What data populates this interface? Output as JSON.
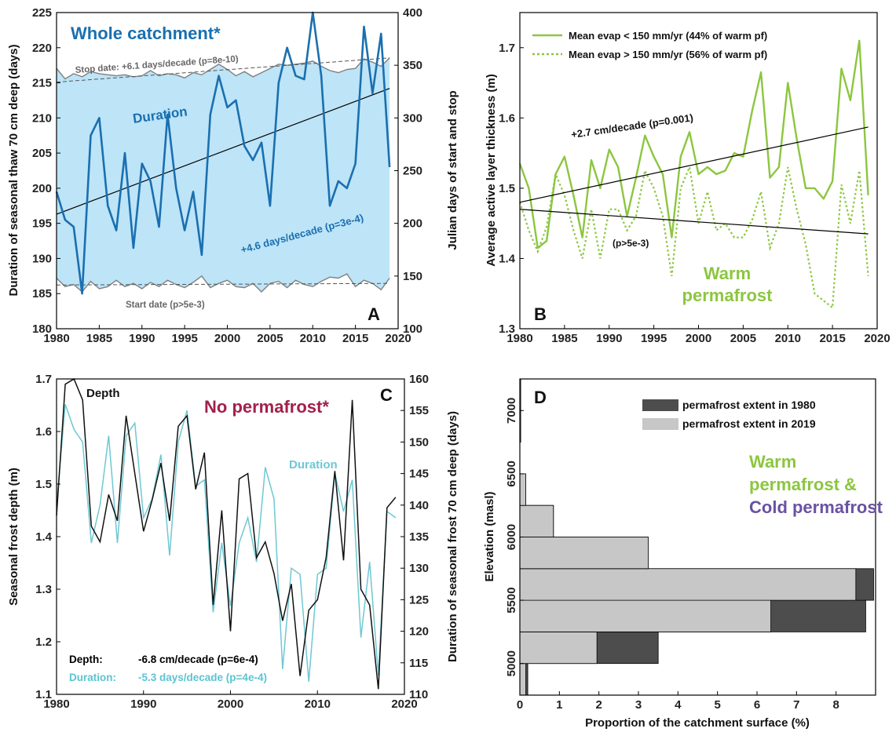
{
  "chart_data": [
    {
      "panel": "A",
      "type": "area",
      "title": "Whole catchment*",
      "xlabel": "",
      "ylabel": "Duration of seasonal thaw 70 cm deep (days)",
      "y2label": "Julian days of start and stop",
      "xlim": [
        1980,
        2020
      ],
      "ylim": [
        180,
        225
      ],
      "y2lim": [
        100,
        400
      ],
      "xticks": [
        "1980",
        "1985",
        "1990",
        "1995",
        "2000",
        "2005",
        "2010",
        "2015",
        "2020"
      ],
      "yticks": [
        "180",
        "185",
        "190",
        "195",
        "200",
        "205",
        "210",
        "215",
        "220",
        "225"
      ],
      "y2ticks": [
        "100",
        "150",
        "200",
        "250",
        "300",
        "350",
        "400"
      ],
      "band_label": "Duration",
      "years": [
        1980,
        1981,
        1982,
        1983,
        1984,
        1985,
        1986,
        1987,
        1988,
        1989,
        1990,
        1991,
        1992,
        1993,
        1994,
        1995,
        1996,
        1997,
        1998,
        1999,
        2000,
        2001,
        2002,
        2003,
        2004,
        2005,
        2006,
        2007,
        2008,
        2009,
        2010,
        2011,
        2012,
        2013,
        2014,
        2015,
        2016,
        2017,
        2018,
        2019
      ],
      "series": [
        {
          "name": "Duration",
          "axis": "left",
          "color": "#1a6fb0",
          "values": [
            199.5,
            195.5,
            194.5,
            185,
            207.5,
            210,
            197.5,
            194,
            205,
            191.5,
            203.5,
            201,
            194.5,
            210.5,
            200,
            194,
            199.5,
            190.5,
            210.5,
            216,
            211.5,
            212.5,
            206,
            204,
            206.5,
            197.5,
            215,
            220,
            216,
            215.5,
            225,
            216,
            197.5,
            201,
            200,
            203.5,
            223,
            213.5,
            222,
            203
          ]
        },
        {
          "name": "Stop date",
          "axis": "right",
          "color": "#808080",
          "values": [
            347,
            337,
            342,
            339,
            344,
            342,
            341,
            340,
            341,
            339,
            340,
            345,
            340,
            342,
            341,
            338,
            343,
            341,
            346,
            351,
            346,
            340,
            344,
            339,
            343,
            347,
            351,
            350,
            351,
            352,
            354,
            349,
            345,
            343,
            346,
            347,
            356,
            353,
            349,
            357
          ]
        },
        {
          "name": "Start date",
          "axis": "right",
          "color": "#808080",
          "values": [
            148,
            140,
            142,
            135,
            145,
            138,
            140,
            146,
            140,
            143,
            138,
            144,
            140,
            146,
            142,
            139,
            144,
            150,
            139,
            143,
            146,
            140,
            139,
            143,
            135,
            143,
            145,
            139,
            146,
            142,
            140,
            145,
            149,
            148,
            152,
            140,
            146,
            143,
            137,
            148
          ]
        }
      ],
      "trends": [
        {
          "label": "+4.6 days/decade (p=3e-4)",
          "color": "#1a6fb0",
          "line_color": "#000000",
          "x": [
            1980,
            2019
          ],
          "y": [
            196.3,
            214.2
          ],
          "axis": "left"
        },
        {
          "label": "Stop date: +6.1 days/decade (p=8e-10)",
          "color": "#666666",
          "x": [
            1980,
            2019
          ],
          "y": [
            334,
            357
          ],
          "axis": "right",
          "dashed": true
        },
        {
          "label": "Start date (p>5e-3)",
          "color": "#666666",
          "x": [
            1980,
            2019
          ],
          "y": [
            141.5,
            143
          ],
          "axis": "right",
          "dashed": true
        }
      ],
      "colors": {
        "band": "#bde4f7",
        "duration": "#1a6fb0",
        "bounds": "#808080"
      }
    },
    {
      "panel": "B",
      "type": "line",
      "title": "",
      "xlabel": "",
      "ylabel": "Average active layer thickness (m)",
      "xlim": [
        1980,
        2020
      ],
      "ylim": [
        1.3,
        1.75
      ],
      "xticks": [
        "1980",
        "1985",
        "1990",
        "1995",
        "2000",
        "2005",
        "2010",
        "2015",
        "2020"
      ],
      "yticks": [
        "1.3",
        "1.4",
        "1.5",
        "1.6",
        "1.7"
      ],
      "annotation": "Warm permafrost",
      "annotation_lines": [
        "Warm",
        "permafrost"
      ],
      "legend_position": "top",
      "years": [
        1980,
        1981,
        1982,
        1983,
        1984,
        1985,
        1986,
        1987,
        1988,
        1989,
        1990,
        1991,
        1992,
        1993,
        1994,
        1995,
        1996,
        1997,
        1998,
        1999,
        2000,
        2001,
        2002,
        2003,
        2004,
        2005,
        2006,
        2007,
        2008,
        2009,
        2010,
        2011,
        2012,
        2013,
        2014,
        2015,
        2016,
        2017,
        2018,
        2019
      ],
      "series": [
        {
          "name": "Mean evap < 150 mm/yr (44% of warm pf)",
          "color": "#8cc63f",
          "style": "solid",
          "values": [
            1.535,
            1.5,
            1.415,
            1.425,
            1.52,
            1.545,
            1.49,
            1.43,
            1.54,
            1.5,
            1.555,
            1.53,
            1.46,
            1.515,
            1.575,
            1.545,
            1.52,
            1.43,
            1.545,
            1.58,
            1.52,
            1.53,
            1.52,
            1.525,
            1.55,
            1.545,
            1.61,
            1.665,
            1.515,
            1.53,
            1.65,
            1.57,
            1.5,
            1.5,
            1.485,
            1.51,
            1.67,
            1.625,
            1.71,
            1.49
          ]
        },
        {
          "name": "Mean evap > 150 mm/yr (56% of warm pf)",
          "color": "#8cc63f",
          "style": "dotted",
          "values": [
            1.48,
            1.44,
            1.41,
            1.445,
            1.52,
            1.49,
            1.44,
            1.4,
            1.47,
            1.4,
            1.47,
            1.47,
            1.44,
            1.46,
            1.525,
            1.5,
            1.46,
            1.375,
            1.5,
            1.53,
            1.45,
            1.495,
            1.44,
            1.45,
            1.43,
            1.43,
            1.455,
            1.495,
            1.415,
            1.45,
            1.53,
            1.47,
            1.42,
            1.35,
            1.34,
            1.33,
            1.505,
            1.45,
            1.525,
            1.375
          ]
        }
      ],
      "trends": [
        {
          "label": "+2.7 cm/decade (p=0.001)",
          "x": [
            1980,
            2019
          ],
          "y": [
            1.48,
            1.587
          ],
          "color": "#000000"
        },
        {
          "label": "(p>5e-3)",
          "x": [
            1980,
            2019
          ],
          "y": [
            1.47,
            1.435
          ],
          "color": "#000000"
        }
      ],
      "colors": {
        "green": "#8cc63f"
      }
    },
    {
      "panel": "C",
      "type": "line",
      "title": "No permafrost*",
      "xlabel": "",
      "ylabel": "Seasonal frost depth (m)",
      "y2label": "Duration of seasonal frost 70 cm deep (days)",
      "xlim": [
        1980,
        2020
      ],
      "ylim": [
        1.1,
        1.7
      ],
      "y2lim": [
        110,
        160
      ],
      "xticks": [
        "1980",
        "1990",
        "2000",
        "2010",
        "2020"
      ],
      "yticks": [
        "1.1",
        "1.2",
        "1.3",
        "1.4",
        "1.5",
        "1.6",
        "1.7"
      ],
      "y2ticks": [
        "110",
        "115",
        "120",
        "125",
        "130",
        "135",
        "140",
        "145",
        "150",
        "155",
        "160"
      ],
      "years": [
        1980,
        1981,
        1982,
        1983,
        1984,
        1985,
        1986,
        1987,
        1988,
        1989,
        1990,
        1991,
        1992,
        1993,
        1994,
        1995,
        1996,
        1997,
        1998,
        1999,
        2000,
        2001,
        2002,
        2003,
        2004,
        2005,
        2006,
        2007,
        2008,
        2009,
        2010,
        2011,
        2012,
        2013,
        2014,
        2015,
        2016,
        2017,
        2018,
        2019
      ],
      "series": [
        {
          "name": "Depth",
          "axis": "left",
          "color": "#111111",
          "values": [
            1.44,
            1.69,
            1.7,
            1.66,
            1.42,
            1.39,
            1.48,
            1.43,
            1.63,
            1.52,
            1.41,
            1.47,
            1.54,
            1.43,
            1.61,
            1.63,
            1.49,
            1.56,
            1.27,
            1.45,
            1.22,
            1.51,
            1.52,
            1.36,
            1.39,
            1.33,
            1.24,
            1.31,
            1.135,
            1.26,
            1.28,
            1.36,
            1.525,
            1.355,
            1.66,
            1.3,
            1.27,
            1.11,
            1.455,
            1.475
          ]
        },
        {
          "name": "Duration",
          "axis": "right",
          "color": "#6ec8d3",
          "values": [
            140,
            156,
            152,
            150,
            134,
            140,
            151,
            134,
            151,
            153,
            138,
            141,
            148,
            132,
            150,
            155,
            143,
            144,
            123,
            134,
            124,
            134,
            138,
            131,
            146,
            141,
            114,
            130,
            129,
            112,
            129,
            130,
            145,
            139,
            144,
            119,
            131,
            113,
            139,
            138
          ]
        }
      ],
      "trend_labels": [
        {
          "name": "Depth:",
          "text": "-6.8 cm/decade (p=6e-4)",
          "color": "#000000"
        },
        {
          "name": "Duration:",
          "text": "-5.3 days/decade (p=4e-4)",
          "color": "#5bc4d1"
        }
      ],
      "colors": {
        "title": "#a3204a",
        "depth": "#111111",
        "duration": "#6ec8d3"
      }
    },
    {
      "panel": "D",
      "type": "bar",
      "orientation": "horizontal",
      "title": "",
      "xlabel": "Proportion of the catchment surface (%)",
      "ylabel": "Elevation (masl)",
      "xlim": [
        0,
        9
      ],
      "ylim": [
        4750,
        7250
      ],
      "xticks": [
        "0",
        "1",
        "2",
        "3",
        "4",
        "5",
        "6",
        "7",
        "8"
      ],
      "yticks": [
        "5000",
        "5500",
        "6000",
        "6500",
        "7000"
      ],
      "bins": [
        [
          4750,
          5000
        ],
        [
          5000,
          5250
        ],
        [
          5250,
          5500
        ],
        [
          5500,
          5750
        ],
        [
          5750,
          6000
        ],
        [
          6000,
          6250
        ],
        [
          6250,
          6500
        ],
        [
          6500,
          6750
        ],
        [
          6750,
          7000
        ],
        [
          7000,
          7250
        ]
      ],
      "series": [
        {
          "name": "permafrost extent in 1980",
          "color": "#4d4d4d",
          "values": [
            0.2,
            3.5,
            8.75,
            8.95,
            3.25,
            0.85,
            0.15,
            0.0,
            0.02,
            0.01
          ]
        },
        {
          "name": "permafrost extent in 2019",
          "color": "#c7c7c7",
          "values": [
            0.15,
            1.95,
            6.35,
            8.5,
            3.25,
            0.85,
            0.15,
            0.0,
            0.02,
            0.01
          ]
        }
      ],
      "annotation_lines": [
        {
          "text": "Warm",
          "color": "#8cc63f"
        },
        {
          "text": "permafrost &",
          "color": "#8cc63f"
        },
        {
          "text": "Cold permafrost",
          "color": "#6a52a3"
        }
      ],
      "legend_position": "top-right"
    }
  ],
  "panel_labels": [
    "A",
    "B",
    "C",
    "D"
  ]
}
